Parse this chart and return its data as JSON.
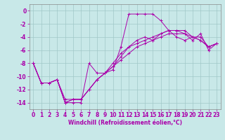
{
  "title": "",
  "xlabel": "Windchill (Refroidissement éolien,°C)",
  "background_color": "#c8e8e8",
  "grid_color": "#a0c8c8",
  "line_color": "#aa00aa",
  "xlim": [
    -0.5,
    23.5
  ],
  "ylim": [
    -15,
    1
  ],
  "xticks": [
    0,
    1,
    2,
    3,
    4,
    5,
    6,
    7,
    8,
    9,
    10,
    11,
    12,
    13,
    14,
    15,
    16,
    17,
    18,
    19,
    20,
    21,
    22,
    23
  ],
  "yticks": [
    0,
    -2,
    -4,
    -6,
    -8,
    -10,
    -12,
    -14
  ],
  "series1_x": [
    0,
    1,
    2,
    3,
    4,
    5,
    6,
    7,
    8,
    9,
    10,
    11,
    12,
    13,
    14,
    15,
    16,
    17,
    18,
    19,
    20,
    21,
    22,
    23
  ],
  "series1_y": [
    -8,
    -11,
    -11,
    -10.5,
    -14,
    -14,
    -14,
    -8,
    -9.5,
    -9.5,
    -9,
    -5.5,
    -0.5,
    -0.5,
    -0.5,
    -0.5,
    -1.5,
    -3,
    -4,
    -4.5,
    -4,
    -4,
    -5.5,
    -5
  ],
  "series2_x": [
    0,
    1,
    2,
    3,
    4,
    5,
    6,
    7,
    8,
    9,
    10,
    11,
    12,
    13,
    14,
    15,
    16,
    17,
    18,
    19,
    20,
    21,
    22,
    23
  ],
  "series2_y": [
    -8,
    -11,
    -11,
    -10.5,
    -14,
    -13.5,
    -13.5,
    -12,
    -10.5,
    -9.5,
    -8.5,
    -7.5,
    -6.5,
    -5.5,
    -5,
    -4.5,
    -4,
    -3.5,
    -3.5,
    -3.5,
    -4,
    -4.5,
    -5.5,
    -5
  ],
  "series3_x": [
    0,
    1,
    2,
    3,
    4,
    5,
    6,
    7,
    8,
    9,
    10,
    11,
    12,
    13,
    14,
    15,
    16,
    17,
    18,
    19,
    20,
    21,
    22,
    23
  ],
  "series3_y": [
    -8,
    -11,
    -11,
    -10.5,
    -14,
    -13.5,
    -13.5,
    -12,
    -10.5,
    -9.5,
    -8.5,
    -7,
    -5.5,
    -4.5,
    -4,
    -4.5,
    -3.5,
    -3,
    -3,
    -3.5,
    -4.5,
    -3.5,
    -6,
    -5
  ],
  "series4_x": [
    0,
    1,
    2,
    3,
    4,
    5,
    6,
    7,
    8,
    9,
    10,
    11,
    12,
    13,
    14,
    15,
    16,
    17,
    18,
    19,
    20,
    21,
    22,
    23
  ],
  "series4_y": [
    -8,
    -11,
    -11,
    -10.5,
    -13.5,
    -13.5,
    -13.5,
    -12,
    -10.5,
    -9.5,
    -8,
    -6.5,
    -5.5,
    -5,
    -4.5,
    -4,
    -3.5,
    -3,
    -3,
    -3,
    -4,
    -4.5,
    -5.5,
    -5
  ],
  "tick_fontsize": 5.5,
  "xlabel_fontsize": 5.5
}
